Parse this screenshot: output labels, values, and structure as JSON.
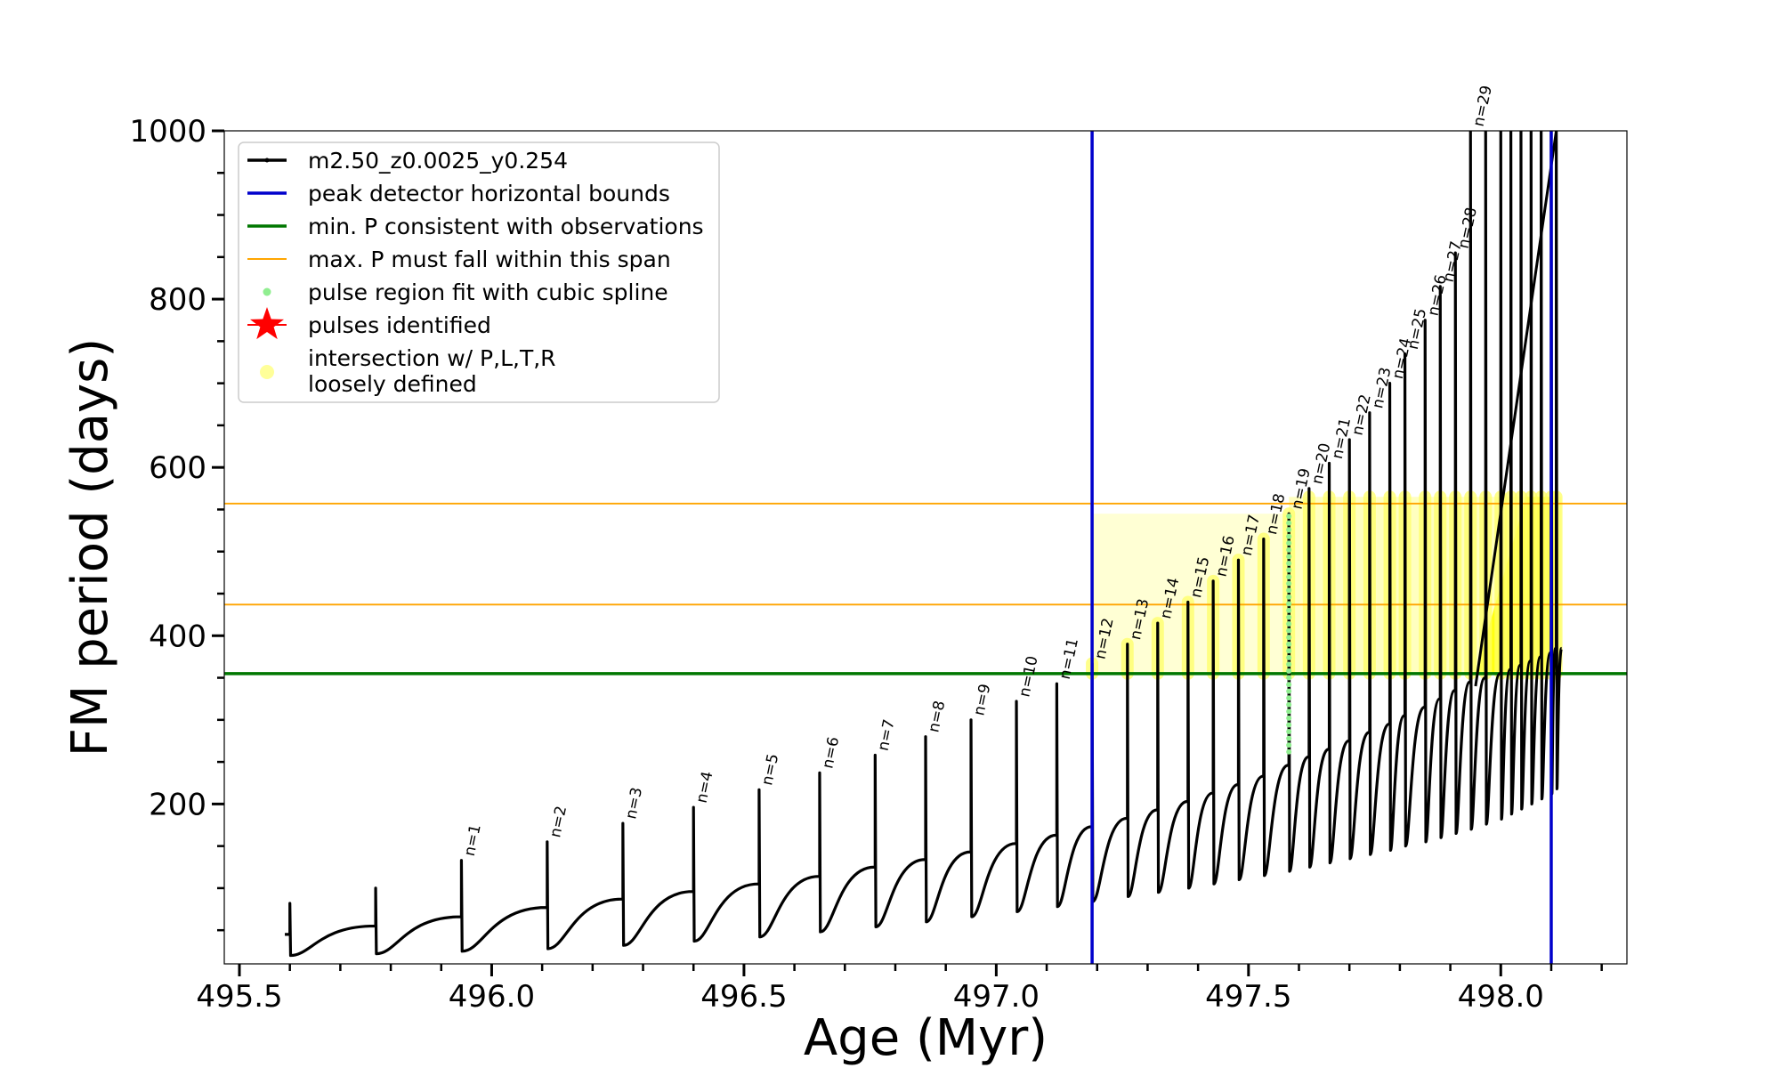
{
  "chart_data": {
    "type": "line",
    "xlabel": "Age (Myr)",
    "ylabel": "FM period (days)",
    "xlim": [
      495.47,
      498.25
    ],
    "ylim": [
      10,
      1000
    ],
    "xticks": [
      495.5,
      496.0,
      496.5,
      497.0,
      497.5,
      498.0
    ],
    "xtick_labels": [
      "495.5",
      "496.0",
      "496.5",
      "497.0",
      "497.5",
      "498.0"
    ],
    "yticks": [
      200,
      400,
      600,
      800,
      1000
    ],
    "ytick_labels": [
      "200",
      "400",
      "600",
      "800",
      "1000"
    ],
    "grid": false,
    "legend": {
      "placement": "upper-left",
      "entries": [
        {
          "label": "m2.50_z0.0025_y0.254",
          "color": "#000000",
          "marker": "line-dot"
        },
        {
          "label": "peak detector horizontal bounds",
          "color": "#0000cc",
          "marker": "line"
        },
        {
          "label": "min. P consistent with observations",
          "color": "#007700",
          "marker": "line"
        },
        {
          "label": "max. P must fall within this span",
          "color": "#ffa500",
          "marker": "line"
        },
        {
          "label": "pulse region fit with cubic spline",
          "color": "#90ee90",
          "marker": "dot"
        },
        {
          "label": "pulses identified",
          "color": "#ff0000",
          "marker": "star"
        },
        {
          "label": "intersection w/ P,L,T,R",
          "label_line2": "loosely defined",
          "color": "#ffff99",
          "marker": "circle"
        }
      ]
    },
    "vertical_lines": [
      {
        "x": 497.19,
        "color": "#0000cc"
      },
      {
        "x": 498.1,
        "color": "#0000cc"
      }
    ],
    "horizontal_lines": [
      {
        "y": 355,
        "color": "#007700"
      },
      {
        "y": 437,
        "color": "#ffa500"
      },
      {
        "y": 557,
        "color": "#ffa500"
      }
    ],
    "track_start": {
      "x": 495.59,
      "y": 45
    },
    "pulses": [
      {
        "label": "",
        "x": 495.6,
        "peak": 82,
        "floor": 20,
        "pre": 45
      },
      {
        "label": "",
        "x": 495.77,
        "peak": 100,
        "floor": 22,
        "pre": 55
      },
      {
        "label": "n=1",
        "x": 495.94,
        "peak": 133,
        "floor": 25,
        "pre": 66
      },
      {
        "label": "n=2",
        "x": 496.11,
        "peak": 155,
        "floor": 28,
        "pre": 77
      },
      {
        "label": "n=3",
        "x": 496.26,
        "peak": 177,
        "floor": 32,
        "pre": 87
      },
      {
        "label": "n=4",
        "x": 496.4,
        "peak": 196,
        "floor": 37,
        "pre": 96
      },
      {
        "label": "n=5",
        "x": 496.53,
        "peak": 217,
        "floor": 42,
        "pre": 105
      },
      {
        "label": "n=6",
        "x": 496.65,
        "peak": 237,
        "floor": 48,
        "pre": 114
      },
      {
        "label": "n=7",
        "x": 496.76,
        "peak": 258,
        "floor": 54,
        "pre": 125
      },
      {
        "label": "n=8",
        "x": 496.86,
        "peak": 280,
        "floor": 60,
        "pre": 134
      },
      {
        "label": "n=9",
        "x": 496.95,
        "peak": 300,
        "floor": 66,
        "pre": 143
      },
      {
        "label": "n=10",
        "x": 497.04,
        "peak": 322,
        "floor": 72,
        "pre": 153
      },
      {
        "label": "n=11",
        "x": 497.12,
        "peak": 343,
        "floor": 78,
        "pre": 163
      },
      {
        "label": "n=12",
        "x": 497.19,
        "peak": 367,
        "floor": 84,
        "pre": 173
      },
      {
        "label": "n=13",
        "x": 497.26,
        "peak": 390,
        "floor": 90,
        "pre": 183
      },
      {
        "label": "n=14",
        "x": 497.32,
        "peak": 415,
        "floor": 95,
        "pre": 193
      },
      {
        "label": "n=15",
        "x": 497.38,
        "peak": 440,
        "floor": 100,
        "pre": 203
      },
      {
        "label": "n=16",
        "x": 497.43,
        "peak": 465,
        "floor": 105,
        "pre": 213
      },
      {
        "label": "n=17",
        "x": 497.48,
        "peak": 490,
        "floor": 110,
        "pre": 223
      },
      {
        "label": "n=18",
        "x": 497.53,
        "peak": 515,
        "floor": 115,
        "pre": 233
      },
      {
        "label": "n=19",
        "x": 497.58,
        "peak": 545,
        "floor": 120,
        "pre": 246
      },
      {
        "label": "n=20",
        "x": 497.62,
        "peak": 575,
        "floor": 125,
        "pre": 256
      },
      {
        "label": "n=21",
        "x": 497.66,
        "peak": 605,
        "floor": 130,
        "pre": 265
      },
      {
        "label": "n=22",
        "x": 497.7,
        "peak": 633,
        "floor": 135,
        "pre": 275
      },
      {
        "label": "n=23",
        "x": 497.74,
        "peak": 665,
        "floor": 140,
        "pre": 285
      },
      {
        "label": "n=24",
        "x": 497.78,
        "peak": 700,
        "floor": 145,
        "pre": 295
      },
      {
        "label": "n=25",
        "x": 497.81,
        "peak": 735,
        "floor": 150,
        "pre": 305
      },
      {
        "label": "n=26",
        "x": 497.85,
        "peak": 775,
        "floor": 155,
        "pre": 315
      },
      {
        "label": "n=27",
        "x": 497.88,
        "peak": 815,
        "floor": 160,
        "pre": 325
      },
      {
        "label": "n=28",
        "x": 497.91,
        "peak": 855,
        "floor": 165,
        "pre": 335
      },
      {
        "label": "n=29",
        "x": 497.94,
        "peak": 1000,
        "floor": 170,
        "pre": 345
      },
      {
        "label": "",
        "x": 497.97,
        "peak": 1000,
        "floor": 176,
        "pre": 350
      },
      {
        "label": "",
        "x": 498.0,
        "peak": 1000,
        "floor": 182,
        "pre": 355
      },
      {
        "label": "",
        "x": 498.02,
        "peak": 1000,
        "floor": 188,
        "pre": 360
      },
      {
        "label": "",
        "x": 498.04,
        "peak": 1000,
        "floor": 194,
        "pre": 365
      },
      {
        "label": "",
        "x": 498.06,
        "peak": 1000,
        "floor": 200,
        "pre": 370
      },
      {
        "label": "",
        "x": 498.08,
        "peak": 1000,
        "floor": 206,
        "pre": 375
      },
      {
        "label": "",
        "x": 498.1,
        "peak": 1000,
        "floor": 212,
        "pre": 380
      },
      {
        "label": "",
        "x": 498.11,
        "peak": 1000,
        "floor": 218,
        "pre": 385
      }
    ],
    "final_rise": {
      "start": {
        "x": 497.95,
        "y": 340
      },
      "end": {
        "x": 498.11,
        "y": 1000
      }
    },
    "cubic_spline_region": {
      "x": 497.58,
      "y_range": [
        262,
        545
      ]
    },
    "intersection_regions": [
      {
        "x_range": [
          497.19,
          497.58
        ],
        "y_range": [
          355,
          545
        ]
      },
      {
        "x_range": [
          497.58,
          498.12
        ],
        "y_range": [
          355,
          565
        ]
      }
    ]
  }
}
